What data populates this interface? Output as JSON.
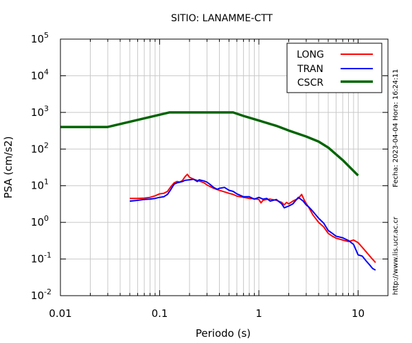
{
  "chart_data": {
    "type": "line",
    "title": "SITIO: LANAMME-CTT",
    "xlabel": "Periodo (s)",
    "ylabel": "PSA (cm/s2)",
    "x_scale": "log",
    "y_scale": "log",
    "xlim": [
      0.01,
      20
    ],
    "ylim": [
      0.01,
      100000
    ],
    "x_ticks": [
      {
        "value": 0.01,
        "label": "0.01"
      },
      {
        "value": 0.1,
        "label": "0.1"
      },
      {
        "value": 1,
        "label": "1"
      },
      {
        "value": 10,
        "label": "10"
      }
    ],
    "y_ticks": [
      {
        "value": 0.01,
        "base": "10",
        "exp": "-2"
      },
      {
        "value": 0.1,
        "base": "10",
        "exp": "-1"
      },
      {
        "value": 1,
        "base": "10",
        "exp": "0"
      },
      {
        "value": 10,
        "base": "10",
        "exp": "1"
      },
      {
        "value": 100,
        "base": "10",
        "exp": "2"
      },
      {
        "value": 1000,
        "base": "10",
        "exp": "3"
      },
      {
        "value": 10000,
        "base": "10",
        "exp": "4"
      },
      {
        "value": 100000,
        "base": "10",
        "exp": "5"
      }
    ],
    "grid": true,
    "legend_position": "top-right",
    "series": [
      {
        "name": "LONG",
        "color": "#ff0000",
        "points": [
          [
            0.05,
            4.5
          ],
          [
            0.06,
            4.5
          ],
          [
            0.07,
            4.6
          ],
          [
            0.08,
            4.8
          ],
          [
            0.09,
            5.3
          ],
          [
            0.1,
            6.0
          ],
          [
            0.11,
            6.2
          ],
          [
            0.12,
            7.0
          ],
          [
            0.13,
            9.5
          ],
          [
            0.14,
            12.0
          ],
          [
            0.15,
            13.0
          ],
          [
            0.16,
            12.5
          ],
          [
            0.17,
            14.0
          ],
          [
            0.18,
            17.5
          ],
          [
            0.19,
            20.5
          ],
          [
            0.2,
            17.0
          ],
          [
            0.22,
            15.0
          ],
          [
            0.25,
            13.5
          ],
          [
            0.28,
            12.0
          ],
          [
            0.3,
            10.5
          ],
          [
            0.35,
            8.5
          ],
          [
            0.4,
            7.5
          ],
          [
            0.45,
            6.8
          ],
          [
            0.5,
            6.2
          ],
          [
            0.55,
            5.8
          ],
          [
            0.6,
            5.2
          ],
          [
            0.7,
            4.8
          ],
          [
            0.8,
            4.5
          ],
          [
            0.9,
            4.4
          ],
          [
            1.0,
            4.2
          ],
          [
            1.05,
            3.4
          ],
          [
            1.1,
            4.0
          ],
          [
            1.2,
            4.2
          ],
          [
            1.3,
            4.3
          ],
          [
            1.5,
            4.0
          ],
          [
            1.7,
            3.5
          ],
          [
            1.8,
            3.0
          ],
          [
            1.9,
            3.5
          ],
          [
            2.0,
            3.2
          ],
          [
            2.2,
            3.8
          ],
          [
            2.5,
            4.5
          ],
          [
            2.7,
            5.8
          ],
          [
            2.9,
            3.8
          ],
          [
            3.2,
            2.5
          ],
          [
            3.5,
            1.6
          ],
          [
            4.0,
            1.0
          ],
          [
            4.5,
            0.75
          ],
          [
            5.0,
            0.5
          ],
          [
            5.5,
            0.42
          ],
          [
            6.0,
            0.37
          ],
          [
            7.0,
            0.33
          ],
          [
            8.0,
            0.3
          ],
          [
            9.0,
            0.33
          ],
          [
            10.0,
            0.28
          ],
          [
            11.0,
            0.21
          ],
          [
            12.0,
            0.16
          ],
          [
            13.5,
            0.11
          ],
          [
            15.0,
            0.08
          ]
        ]
      },
      {
        "name": "TRAN",
        "color": "#0000ff",
        "points": [
          [
            0.05,
            3.8
          ],
          [
            0.06,
            4.0
          ],
          [
            0.07,
            4.2
          ],
          [
            0.08,
            4.3
          ],
          [
            0.09,
            4.5
          ],
          [
            0.1,
            4.8
          ],
          [
            0.11,
            5.0
          ],
          [
            0.12,
            5.8
          ],
          [
            0.13,
            8.0
          ],
          [
            0.14,
            11.0
          ],
          [
            0.15,
            12.0
          ],
          [
            0.16,
            12.5
          ],
          [
            0.17,
            13.0
          ],
          [
            0.18,
            14.0
          ],
          [
            0.2,
            14.5
          ],
          [
            0.22,
            15.0
          ],
          [
            0.24,
            13.0
          ],
          [
            0.25,
            14.5
          ],
          [
            0.28,
            13.5
          ],
          [
            0.3,
            12.5
          ],
          [
            0.32,
            11.0
          ],
          [
            0.35,
            9.0
          ],
          [
            0.38,
            8.0
          ],
          [
            0.4,
            8.5
          ],
          [
            0.45,
            9.0
          ],
          [
            0.5,
            7.5
          ],
          [
            0.55,
            7.0
          ],
          [
            0.6,
            6.0
          ],
          [
            0.7,
            5.0
          ],
          [
            0.8,
            5.0
          ],
          [
            0.9,
            4.3
          ],
          [
            1.0,
            4.8
          ],
          [
            1.1,
            4.3
          ],
          [
            1.2,
            4.5
          ],
          [
            1.3,
            3.8
          ],
          [
            1.5,
            4.2
          ],
          [
            1.7,
            3.2
          ],
          [
            1.8,
            2.5
          ],
          [
            2.0,
            2.8
          ],
          [
            2.2,
            3.2
          ],
          [
            2.5,
            4.8
          ],
          [
            2.8,
            3.8
          ],
          [
            3.0,
            3.0
          ],
          [
            3.2,
            2.6
          ],
          [
            3.5,
            2.0
          ],
          [
            4.0,
            1.3
          ],
          [
            4.5,
            0.95
          ],
          [
            5.0,
            0.6
          ],
          [
            5.5,
            0.5
          ],
          [
            6.0,
            0.42
          ],
          [
            7.0,
            0.38
          ],
          [
            8.0,
            0.32
          ],
          [
            9.0,
            0.25
          ],
          [
            10.0,
            0.13
          ],
          [
            11.0,
            0.12
          ],
          [
            12.0,
            0.09
          ],
          [
            13.0,
            0.07
          ],
          [
            14.0,
            0.055
          ],
          [
            15.0,
            0.05
          ]
        ]
      },
      {
        "name": "CSCR",
        "color": "#006400",
        "points": [
          [
            0.01,
            400
          ],
          [
            0.03,
            400
          ],
          [
            0.125,
            1000
          ],
          [
            0.55,
            1000
          ],
          [
            0.7,
            800
          ],
          [
            1.0,
            600
          ],
          [
            1.5,
            430
          ],
          [
            2.0,
            320
          ],
          [
            3.0,
            220
          ],
          [
            4.0,
            160
          ],
          [
            5.0,
            110
          ],
          [
            7.0,
            50
          ],
          [
            10.0,
            19
          ]
        ]
      }
    ]
  },
  "side_texts": {
    "timestamp": "Fecha: 2023-04-04 Hora: 16:24:11",
    "url": "http://www.lis.ucr.ac.cr"
  }
}
